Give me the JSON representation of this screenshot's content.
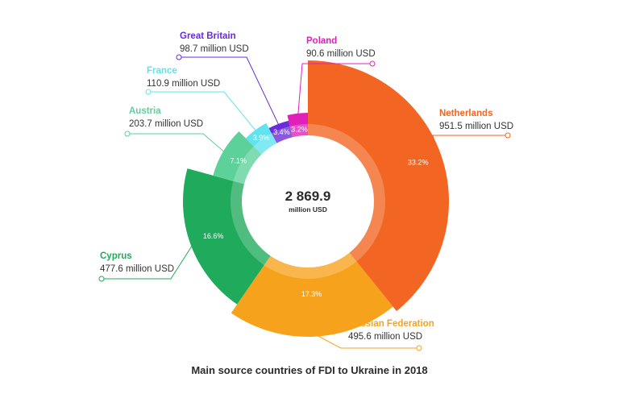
{
  "chart_data": {
    "type": "pie",
    "variant": "donut",
    "title": "Main source countries of FDI to Ukraine in 2018",
    "center_value": "2 869.9",
    "center_unit": "million USD",
    "total": 2869.9,
    "slices": [
      {
        "name": "Netherlands",
        "value": 951.5,
        "value_label": "951.5 million USD",
        "percent_label": "33.2%",
        "color": "#f26522"
      },
      {
        "name": "Russian Federation",
        "value": 495.6,
        "value_label": "495.6 million USD",
        "percent_label": "17.3%",
        "color": "#f7a21c"
      },
      {
        "name": "Cyprus",
        "value": 477.6,
        "value_label": "477.6 million USD",
        "percent_label": "16.6%",
        "color": "#1faa5c"
      },
      {
        "name": "Austria",
        "value": 203.7,
        "value_label": "203.7 million USD",
        "percent_label": "7.1%",
        "color": "#5cd19a"
      },
      {
        "name": "France",
        "value": 110.9,
        "value_label": "110.9 million USD",
        "percent_label": "3.9%",
        "color": "#5fe3ef"
      },
      {
        "name": "Great Britain",
        "value": 98.7,
        "value_label": "98.7 million USD",
        "percent_label": "3.4%",
        "color": "#6a2bd8"
      },
      {
        "name": "Poland",
        "value": 90.6,
        "value_label": "90.6 million USD",
        "percent_label": "3.2%",
        "color": "#e020b8"
      }
    ]
  }
}
